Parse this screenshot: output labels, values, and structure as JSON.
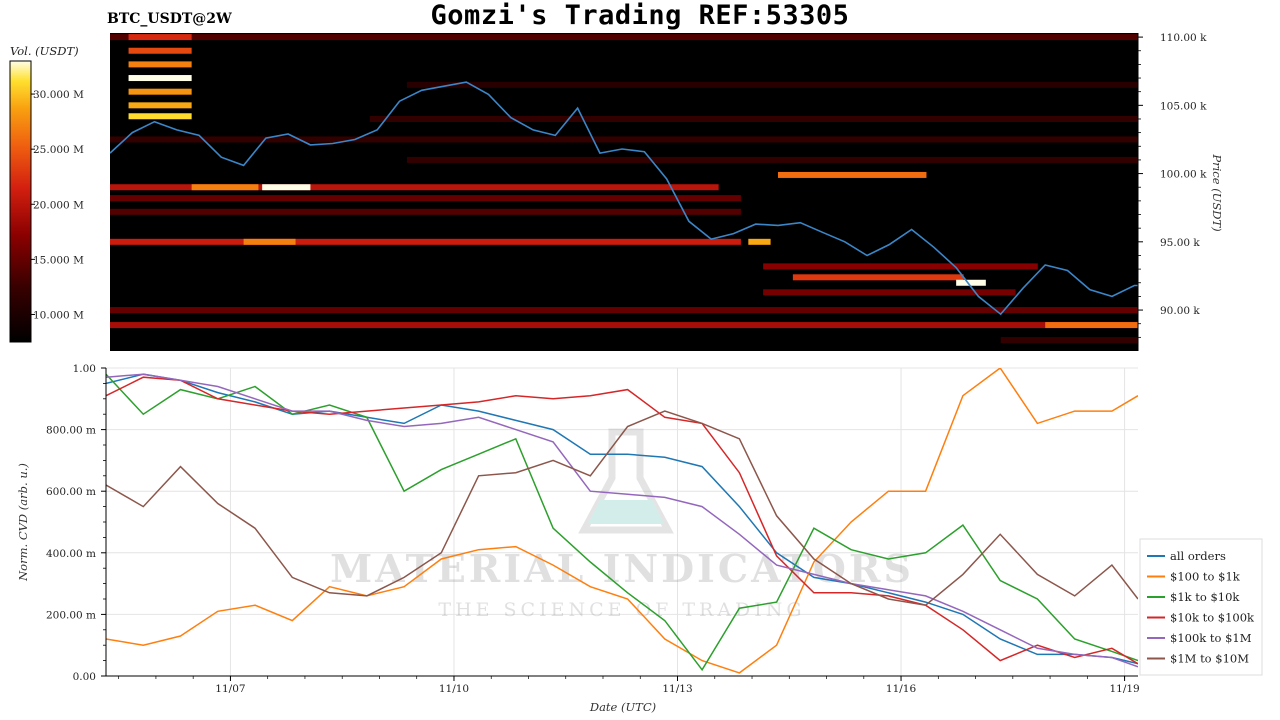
{
  "header": {
    "title": "Gomzi's Trading REF:53305",
    "symbol": "BTC_USDT@2W"
  },
  "colorbar": {
    "label": "Vol. (USDT)",
    "ticks": [
      "10.000 M",
      "15.000 M",
      "20.000 M",
      "25.000 M",
      "30.000 M"
    ],
    "tick_values": [
      10,
      15,
      20,
      25,
      30
    ],
    "range": [
      7.5,
      33
    ],
    "colors": [
      "#000000",
      "#3a0000",
      "#8b0000",
      "#d42010",
      "#f06010",
      "#f8a010",
      "#ffe030",
      "#ffffe8"
    ]
  },
  "watermark": {
    "line1": "MATERIAL INDICATORS",
    "line2": "THE SCIENCE OF TRADING"
  },
  "chart_data": [
    {
      "type": "heatmap",
      "name": "orderbook-heatmap",
      "ylabel": "Price (USDT)",
      "ylim": [
        87000,
        110300
      ],
      "yticks": [
        90000,
        95000,
        100000,
        105000,
        110000
      ],
      "ytick_labels": [
        "90.00 k",
        "95.00 k",
        "100.00 k",
        "105.00 k",
        "110.00 k"
      ],
      "xlim": [
        "11/05 16:00",
        "11/19 12:00"
      ],
      "price_line_color": "#3a86c8",
      "price_series": {
        "x_days": [
          0.0,
          0.3,
          0.6,
          0.9,
          1.2,
          1.5,
          1.8,
          2.1,
          2.4,
          2.7,
          3.0,
          3.3,
          3.6,
          3.9,
          4.2,
          4.5,
          4.8,
          5.1,
          5.4,
          5.7,
          6.0,
          6.3,
          6.6,
          6.9,
          7.2,
          7.5,
          7.8,
          8.1,
          8.4,
          8.7,
          9.0,
          9.3,
          9.6,
          9.9,
          10.2,
          10.5,
          10.8,
          11.1,
          11.4,
          11.7,
          12.0,
          12.3,
          12.6,
          12.9,
          13.2,
          13.5,
          13.8,
          13.85
        ],
        "price": [
          101500,
          103000,
          103800,
          103200,
          102800,
          101200,
          100600,
          102600,
          102900,
          102100,
          102200,
          102500,
          103200,
          105300,
          106100,
          106400,
          106700,
          105800,
          104100,
          103200,
          102800,
          104800,
          101500,
          101800,
          101600,
          99600,
          96500,
          95200,
          95600,
          96300,
          96200,
          96400,
          95700,
          95000,
          94000,
          94800,
          95900,
          94600,
          93100,
          91000,
          89700,
          91600,
          93300,
          92900,
          91500,
          91000,
          91800,
          91800
        ]
      },
      "levels": [
        {
          "price": 110000,
          "from_day": 0.0,
          "to_day": 13.85,
          "vol": 14
        },
        {
          "price": 104200,
          "from_day": 0.25,
          "to_day": 1.1,
          "vol": 31
        },
        {
          "price": 105000,
          "from_day": 0.25,
          "to_day": 1.1,
          "vol": 29
        },
        {
          "price": 106000,
          "from_day": 0.25,
          "to_day": 1.1,
          "vol": 28
        },
        {
          "price": 107000,
          "from_day": 0.25,
          "to_day": 1.1,
          "vol": 33
        },
        {
          "price": 108000,
          "from_day": 0.25,
          "to_day": 1.1,
          "vol": 27
        },
        {
          "price": 109000,
          "from_day": 0.25,
          "to_day": 1.1,
          "vol": 24
        },
        {
          "price": 110000,
          "from_day": 0.25,
          "to_day": 1.1,
          "vol": 22
        },
        {
          "price": 99000,
          "from_day": 0.0,
          "to_day": 8.2,
          "vol": 20
        },
        {
          "price": 99000,
          "from_day": 1.1,
          "to_day": 2.0,
          "vol": 27
        },
        {
          "price": 99000,
          "from_day": 2.05,
          "to_day": 2.7,
          "vol": 33
        },
        {
          "price": 98200,
          "from_day": 0.0,
          "to_day": 8.5,
          "vol": 15
        },
        {
          "price": 97200,
          "from_day": 0.0,
          "to_day": 8.5,
          "vol": 14
        },
        {
          "price": 95000,
          "from_day": 0.0,
          "to_day": 8.5,
          "vol": 21
        },
        {
          "price": 95000,
          "from_day": 1.8,
          "to_day": 2.5,
          "vol": 27
        },
        {
          "price": 95000,
          "from_day": 8.6,
          "to_day": 8.9,
          "vol": 29
        },
        {
          "price": 99900,
          "from_day": 9.0,
          "to_day": 11.0,
          "vol": 26
        },
        {
          "price": 93200,
          "from_day": 8.8,
          "to_day": 12.5,
          "vol": 17
        },
        {
          "price": 92400,
          "from_day": 9.2,
          "to_day": 11.5,
          "vol": 23
        },
        {
          "price": 92000,
          "from_day": 11.4,
          "to_day": 11.8,
          "vol": 33
        },
        {
          "price": 91300,
          "from_day": 8.8,
          "to_day": 12.2,
          "vol": 16
        },
        {
          "price": 90000,
          "from_day": 0.0,
          "to_day": 13.85,
          "vol": 15
        },
        {
          "price": 88900,
          "from_day": 0.0,
          "to_day": 13.85,
          "vol": 19
        },
        {
          "price": 88900,
          "from_day": 12.6,
          "to_day": 13.85,
          "vol": 26
        },
        {
          "price": 102500,
          "from_day": 0.0,
          "to_day": 13.85,
          "vol": 12
        },
        {
          "price": 104000,
          "from_day": 3.5,
          "to_day": 13.85,
          "vol": 12
        },
        {
          "price": 106500,
          "from_day": 4.0,
          "to_day": 13.85,
          "vol": 11
        },
        {
          "price": 101000,
          "from_day": 4.0,
          "to_day": 13.85,
          "vol": 12
        },
        {
          "price": 87800,
          "from_day": 12.0,
          "to_day": 13.85,
          "vol": 12
        }
      ]
    },
    {
      "type": "line",
      "name": "normalized-cvd",
      "xlabel": "Date (UTC)",
      "ylabel": "Norm. CVD (arb. u.)",
      "ylim": [
        0,
        1
      ],
      "yticks": [
        0,
        0.2,
        0.4,
        0.6,
        0.8,
        1.0
      ],
      "ytick_labels": [
        "0.00",
        "200.00 m",
        "400.00 m",
        "600.00 m",
        "800.00 m",
        "1.00"
      ],
      "xticks_days": [
        1.67,
        4.67,
        7.67,
        10.67,
        13.67
      ],
      "xtick_labels": [
        "11/07",
        "11/10",
        "11/13",
        "11/16",
        "11/19"
      ],
      "x_days": [
        0.0,
        0.5,
        1.0,
        1.5,
        2.0,
        2.5,
        3.0,
        3.5,
        4.0,
        4.5,
        5.0,
        5.5,
        6.0,
        6.5,
        7.0,
        7.5,
        8.0,
        8.5,
        9.0,
        9.5,
        10.0,
        10.5,
        11.0,
        11.5,
        12.0,
        12.5,
        13.0,
        13.5,
        13.85
      ],
      "series": [
        {
          "name": "all orders",
          "color": "#1f77b4",
          "values": [
            0.95,
            0.98,
            0.96,
            0.92,
            0.89,
            0.85,
            0.86,
            0.84,
            0.82,
            0.88,
            0.86,
            0.83,
            0.8,
            0.72,
            0.72,
            0.71,
            0.68,
            0.55,
            0.4,
            0.32,
            0.3,
            0.27,
            0.24,
            0.2,
            0.12,
            0.07,
            0.07,
            0.06,
            0.04
          ]
        },
        {
          "name": "$100 to $1k",
          "color": "#ff7f0e",
          "values": [
            0.12,
            0.1,
            0.13,
            0.21,
            0.23,
            0.18,
            0.29,
            0.26,
            0.29,
            0.38,
            0.41,
            0.42,
            0.36,
            0.29,
            0.25,
            0.12,
            0.05,
            0.01,
            0.1,
            0.37,
            0.5,
            0.6,
            0.6,
            0.91,
            1.0,
            0.82,
            0.86,
            0.86,
            0.91
          ]
        },
        {
          "name": "$1k to $10k",
          "color": "#2ca02c",
          "values": [
            0.98,
            0.85,
            0.93,
            0.9,
            0.94,
            0.85,
            0.88,
            0.84,
            0.6,
            0.67,
            0.72,
            0.77,
            0.48,
            0.37,
            0.27,
            0.18,
            0.02,
            0.22,
            0.24,
            0.48,
            0.41,
            0.38,
            0.4,
            0.49,
            0.31,
            0.25,
            0.12,
            0.08,
            0.05
          ]
        },
        {
          "name": "$10k to $100k",
          "color": "#d62728",
          "values": [
            0.91,
            0.97,
            0.96,
            0.9,
            0.88,
            0.86,
            0.85,
            0.86,
            0.87,
            0.88,
            0.89,
            0.91,
            0.9,
            0.91,
            0.93,
            0.84,
            0.82,
            0.66,
            0.39,
            0.27,
            0.27,
            0.26,
            0.23,
            0.15,
            0.05,
            0.1,
            0.06,
            0.09,
            0.04
          ]
        },
        {
          "name": "$100k to $1M",
          "color": "#9467bd",
          "values": [
            0.97,
            0.98,
            0.96,
            0.94,
            0.9,
            0.86,
            0.86,
            0.83,
            0.81,
            0.82,
            0.84,
            0.8,
            0.76,
            0.6,
            0.59,
            0.58,
            0.55,
            0.46,
            0.36,
            0.33,
            0.3,
            0.28,
            0.26,
            0.21,
            0.15,
            0.09,
            0.07,
            0.06,
            0.03
          ]
        },
        {
          "name": "$1M to $10M",
          "color": "#8c564b",
          "values": [
            0.62,
            0.55,
            0.68,
            0.56,
            0.48,
            0.32,
            0.27,
            0.26,
            0.32,
            0.4,
            0.65,
            0.66,
            0.7,
            0.65,
            0.81,
            0.86,
            0.82,
            0.77,
            0.52,
            0.38,
            0.3,
            0.25,
            0.23,
            0.33,
            0.46,
            0.33,
            0.26,
            0.36,
            0.25
          ]
        }
      ],
      "legend_position": "right"
    }
  ]
}
